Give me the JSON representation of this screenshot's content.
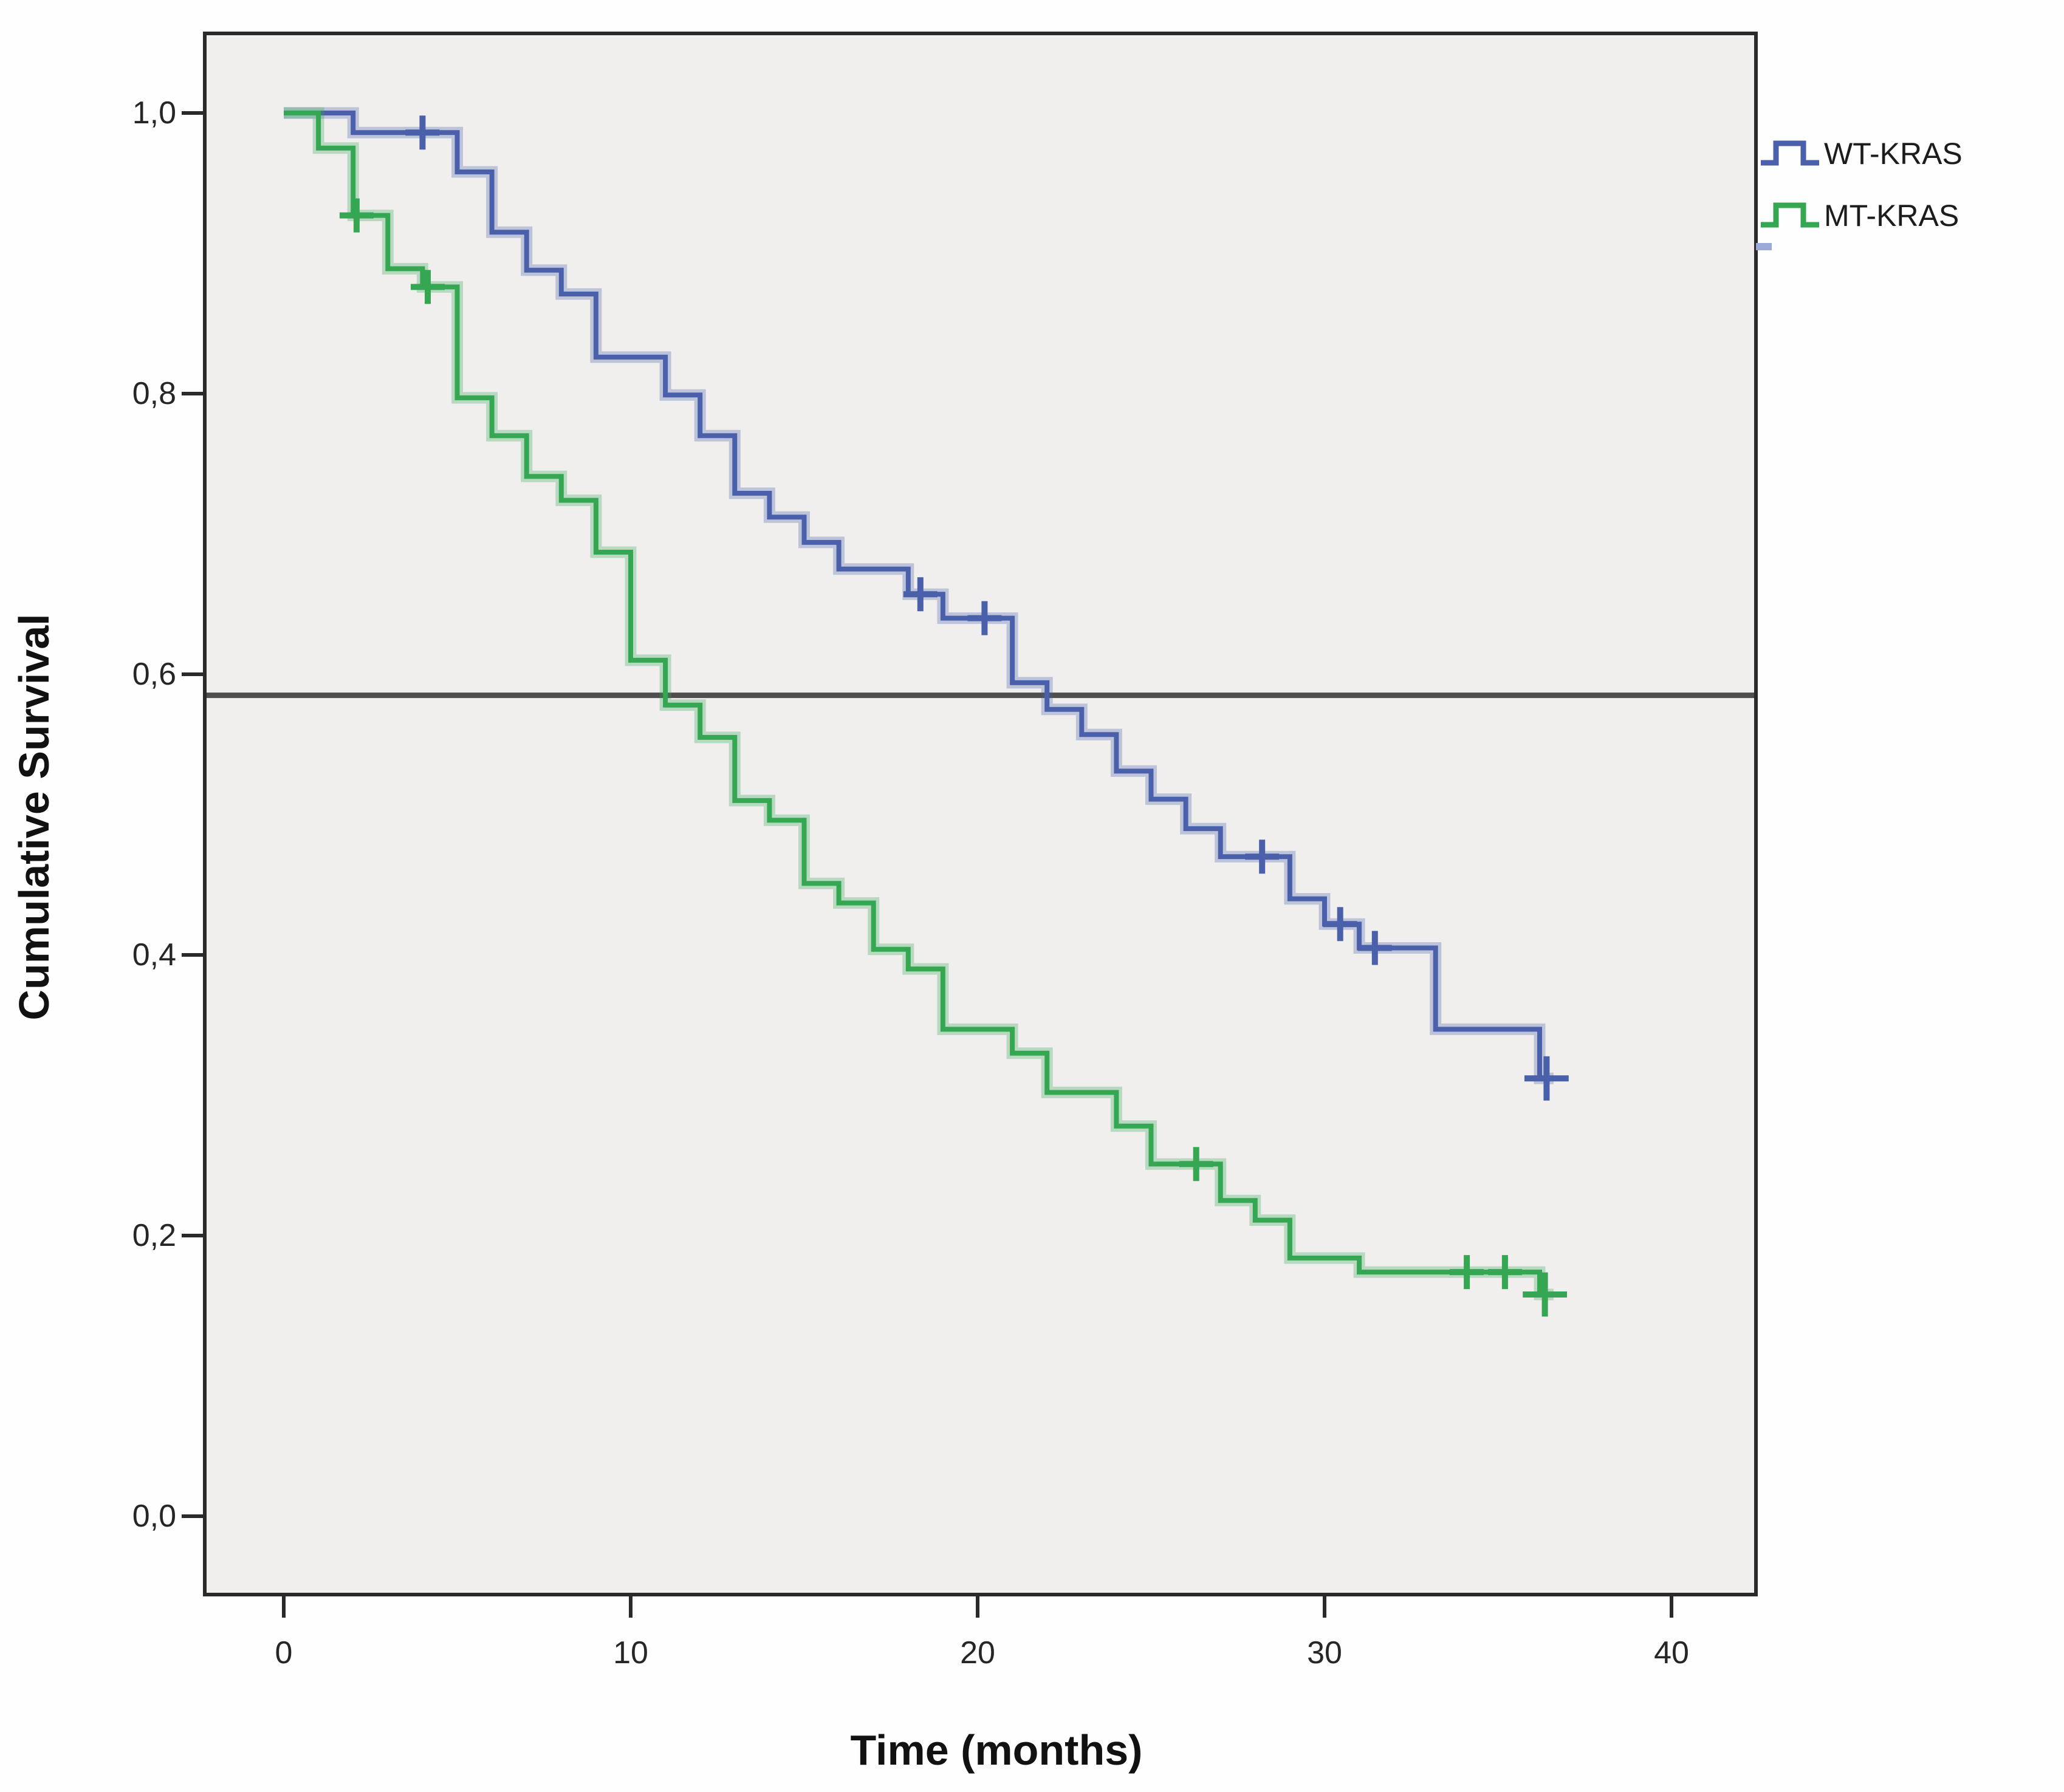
{
  "chart_data": {
    "type": "line",
    "subtype": "kaplan-meier-step",
    "title": "",
    "xlabel": "Time (months)",
    "ylabel": "Cumulative Survival",
    "xlim": [
      -2.3,
      42.4
    ],
    "ylim": [
      -0.06,
      1.06
    ],
    "xticks": [
      0,
      10,
      20,
      30,
      40
    ],
    "yticks": [
      1.0,
      0.8,
      0.6,
      0.4,
      0.2,
      0.0
    ],
    "xtick_labels": [
      "0",
      "10",
      "20",
      "30",
      "40"
    ],
    "ytick_labels": [
      "1,0",
      "0,8",
      "0,6",
      "0,4",
      "0,2",
      "0,0"
    ],
    "grid": false,
    "plot_background": "#f0efee",
    "frame_color": "#2a2a2a",
    "reference_line_y": 0.585,
    "reference_line_color": "#4e4e4e",
    "legend_position": "top-right",
    "series": [
      {
        "name": "WT-KRAS",
        "color": "#4a60aa",
        "halo_color": "rgba(74,96,170,0.30)",
        "t_end": 36.6,
        "steps": [
          [
            0,
            1.0
          ],
          [
            2,
            0.986
          ],
          [
            5,
            0.958
          ],
          [
            6,
            0.915
          ],
          [
            7,
            0.888
          ],
          [
            8,
            0.871
          ],
          [
            9,
            0.826
          ],
          [
            11,
            0.799
          ],
          [
            12,
            0.77
          ],
          [
            13,
            0.729
          ],
          [
            14,
            0.712
          ],
          [
            15,
            0.694
          ],
          [
            16,
            0.675
          ],
          [
            18,
            0.657
          ],
          [
            19,
            0.64
          ],
          [
            21,
            0.594
          ],
          [
            22,
            0.575
          ],
          [
            23,
            0.557
          ],
          [
            24,
            0.531
          ],
          [
            25,
            0.511
          ],
          [
            26,
            0.49
          ],
          [
            27,
            0.47
          ],
          [
            29,
            0.44
          ],
          [
            30,
            0.422
          ],
          [
            31,
            0.405
          ],
          [
            33.2,
            0.347
          ],
          [
            36.2,
            0.312
          ]
        ],
        "censors": [
          [
            4.0,
            0.986,
            1.0
          ],
          [
            18.35,
            0.657,
            1.0
          ],
          [
            20.2,
            0.64,
            1.0
          ],
          [
            28.2,
            0.47,
            1.0
          ],
          [
            30.45,
            0.422,
            1.0
          ],
          [
            31.45,
            0.405,
            1.0
          ],
          [
            36.4,
            0.312,
            1.3
          ]
        ]
      },
      {
        "name": "MT-KRAS",
        "color": "#35a652",
        "halo_color": "rgba(53,166,82,0.30)",
        "t_end": 36.6,
        "steps": [
          [
            0,
            1.0
          ],
          [
            1,
            0.975
          ],
          [
            2,
            0.927
          ],
          [
            3,
            0.889
          ],
          [
            4,
            0.876
          ],
          [
            5,
            0.797
          ],
          [
            6,
            0.77
          ],
          [
            7,
            0.741
          ],
          [
            8,
            0.724
          ],
          [
            9,
            0.687
          ],
          [
            10,
            0.61
          ],
          [
            11,
            0.578
          ],
          [
            12,
            0.555
          ],
          [
            13,
            0.51
          ],
          [
            14,
            0.496
          ],
          [
            15,
            0.451
          ],
          [
            16,
            0.437
          ],
          [
            17,
            0.404
          ],
          [
            18,
            0.39
          ],
          [
            19,
            0.347
          ],
          [
            21,
            0.33
          ],
          [
            22,
            0.302
          ],
          [
            24,
            0.278
          ],
          [
            25,
            0.251
          ],
          [
            27,
            0.225
          ],
          [
            28,
            0.211
          ],
          [
            29,
            0.184
          ],
          [
            31,
            0.174
          ],
          [
            36.2,
            0.158
          ]
        ],
        "censors": [
          [
            2.1,
            0.927,
            1.0
          ],
          [
            4.15,
            0.876,
            1.0
          ],
          [
            26.3,
            0.251,
            1.0
          ],
          [
            34.1,
            0.174,
            1.0
          ],
          [
            35.2,
            0.174,
            1.0
          ],
          [
            36.35,
            0.158,
            1.3
          ]
        ]
      }
    ]
  }
}
